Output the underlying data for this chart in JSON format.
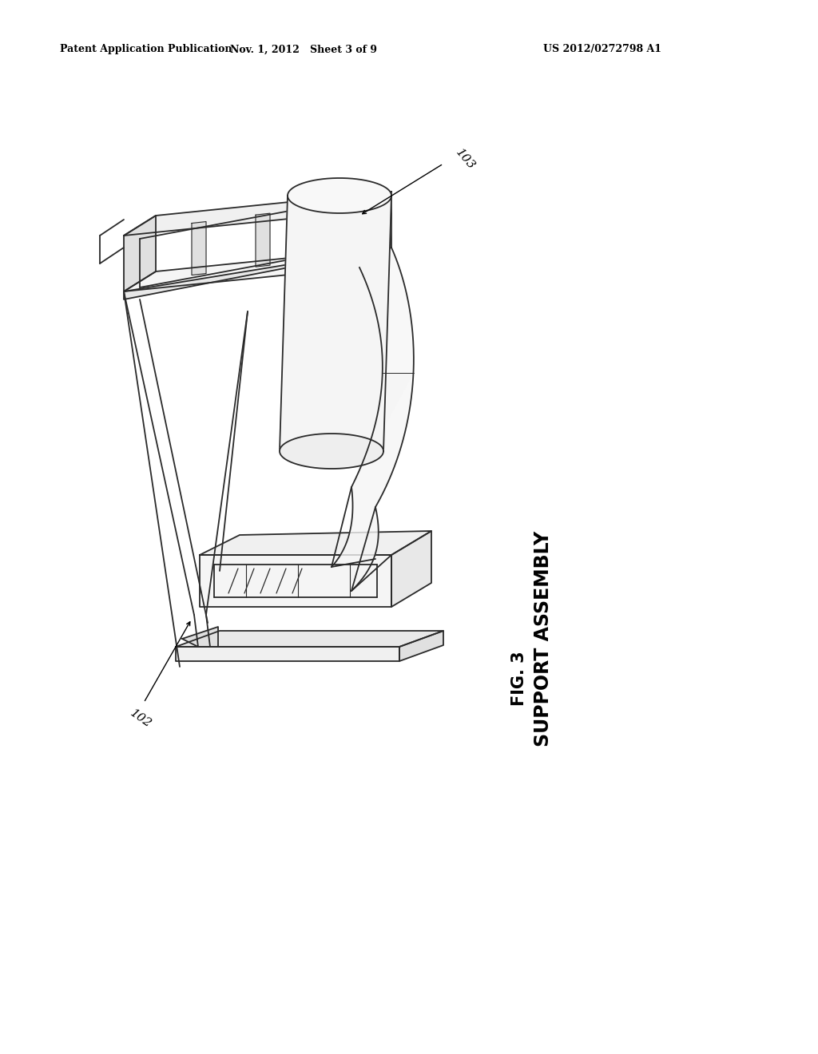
{
  "bg_color": "#ffffff",
  "header_left": "Patent Application Publication",
  "header_mid": "Nov. 1, 2012   Sheet 3 of 9",
  "header_right": "US 2012/0272798 A1",
  "fig_label": "FIG. 3",
  "fig_sublabel": "SUPPORT ASSEMBLY",
  "ref_102": "102",
  "ref_103": "103",
  "line_color": "#2a2a2a",
  "line_width": 1.3
}
